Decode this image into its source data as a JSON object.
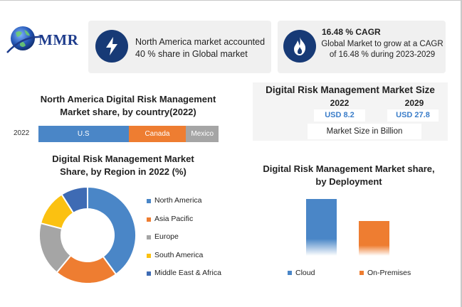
{
  "logo": {
    "text": "MMR"
  },
  "info_cards": [
    {
      "icon": "lightning-bolt-icon",
      "text": "North America market accounted 40 % share in Global market"
    },
    {
      "icon": "flame-icon",
      "title": "16.48 % CAGR",
      "text": "Global Market to grow at a CAGR of 16.48 % during 2023-2029"
    }
  ],
  "market_size": {
    "title": "Digital Risk Management Market Size",
    "years": [
      {
        "year": "2022",
        "value": "USD 8.2"
      },
      {
        "year": "2029",
        "value": "USD 27.8"
      }
    ],
    "unit_label": "Market Size in Billion"
  },
  "colors": {
    "us": "#4a86c7",
    "canada": "#ee7d31",
    "mexico": "#a5a5a5",
    "north_america": "#4a86c7",
    "asia_pacific": "#ee7d31",
    "europe": "#a5a5a5",
    "south_america": "#fbc111",
    "middle_east_africa": "#3e6bb4",
    "cloud": "#4a86c7",
    "on_premises": "#ee7d31",
    "icon_bg": "#173a76"
  },
  "chart_data": [
    {
      "type": "bar",
      "orientation": "horizontal-stacked",
      "title": "North America Digital Risk Management Market share, by country(2022)",
      "categories": [
        "2022"
      ],
      "series": [
        {
          "name": "U.S",
          "values": [
            50
          ]
        },
        {
          "name": "Canada",
          "values": [
            32
          ]
        },
        {
          "name": "Mexico",
          "values": [
            18
          ]
        }
      ],
      "xlim": [
        0,
        100
      ],
      "grid": false,
      "legend": "inside-bars"
    },
    {
      "type": "pie",
      "variant": "donut",
      "title": "Digital Risk Management Market Share, by Region in 2022 (%)",
      "labels": [
        "North America",
        "Asia Pacific",
        "Europe",
        "South America",
        "Middle East & Africa"
      ],
      "values": [
        40,
        21,
        18,
        12,
        9
      ],
      "legend": "right"
    },
    {
      "type": "bar",
      "title": "Digital Risk Management Market share, by Deployment",
      "categories": [
        "Cloud",
        "On-Premises"
      ],
      "values": [
        62,
        38
      ],
      "ylim": [
        0,
        70
      ],
      "grid": false,
      "legend": "bottom"
    }
  ]
}
